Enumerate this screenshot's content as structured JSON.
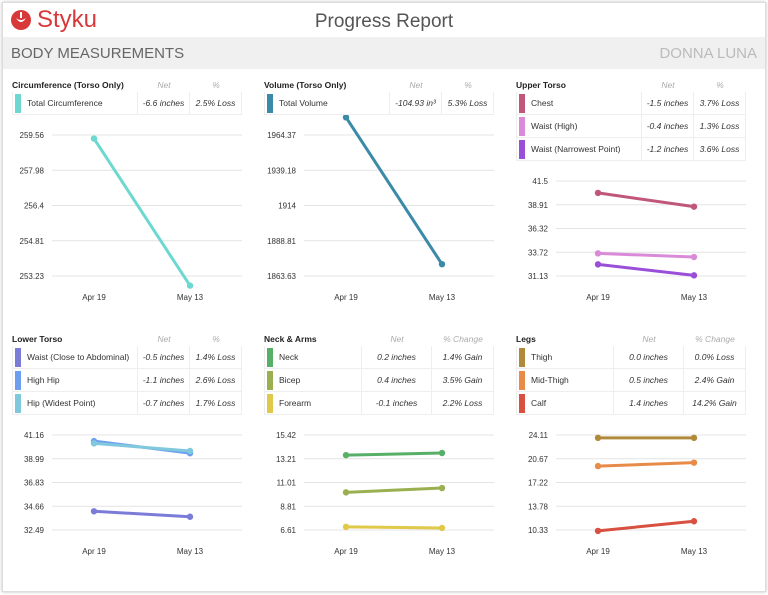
{
  "header": {
    "logo": "Styku",
    "title": "Progress Report",
    "section": "BODY MEASUREMENTS",
    "client": "DONNA LUNA"
  },
  "x_labels": [
    "Apr 19",
    "May 13"
  ],
  "panels": [
    {
      "title": "Circumference (Torso Only)",
      "net_header": "Net",
      "pct_header": "%",
      "ticks": [
        "259.56",
        "257.98",
        "256.4",
        "254.81",
        "253.23"
      ],
      "rows": [
        {
          "label": "Total Circumference",
          "net": "-6.6 inches",
          "pct": "2.5% Loss",
          "color": "#6dd8d0",
          "values": [
            259.4,
            252.8
          ]
        }
      ]
    },
    {
      "title": "Volume (Torso Only)",
      "net_header": "Net",
      "pct_header": "%",
      "ticks": [
        "1964.37",
        "1939.18",
        "1914",
        "1888.81",
        "1863.63"
      ],
      "rows": [
        {
          "label": "Total Volume",
          "net": "-104.93 in³",
          "pct": "5.3% Loss",
          "color": "#3a8aa8",
          "values": [
            1977.0,
            1872.07
          ]
        }
      ]
    },
    {
      "title": "Upper Torso",
      "net_header": "Net",
      "pct_header": "%",
      "ticks": [
        "41.5",
        "38.91",
        "36.32",
        "33.72",
        "31.13"
      ],
      "rows": [
        {
          "label": "Chest",
          "net": "-1.5 inches",
          "pct": "3.7% Loss",
          "color": "#c0567a",
          "values": [
            40.2,
            38.7
          ]
        },
        {
          "label": "Waist (High)",
          "net": "-0.4 inches",
          "pct": "1.3% Loss",
          "color": "#d98ad8",
          "values": [
            33.6,
            33.2
          ]
        },
        {
          "label": "Waist (Narrowest Point)",
          "net": "-1.2 inches",
          "pct": "3.6% Loss",
          "color": "#9a4fd8",
          "values": [
            32.4,
            31.2
          ]
        }
      ]
    },
    {
      "title": "Lower Torso",
      "net_header": "Net",
      "pct_header": "%",
      "ticks": [
        "41.16",
        "38.99",
        "36.83",
        "34.66",
        "32.49"
      ],
      "rows": [
        {
          "label": "Waist (Close to Abdominal)",
          "net": "-0.5 inches",
          "pct": "1.4% Loss",
          "color": "#7b7bd8",
          "values": [
            34.2,
            33.7
          ]
        },
        {
          "label": "High Hip",
          "net": "-1.1 inches",
          "pct": "2.6% Loss",
          "color": "#6e9ef0",
          "values": [
            40.6,
            39.5
          ]
        },
        {
          "label": "Hip (Widest Point)",
          "net": "-0.7 inches",
          "pct": "1.7% Loss",
          "color": "#80c8dc",
          "values": [
            40.4,
            39.7
          ]
        }
      ]
    },
    {
      "title": "Neck & Arms",
      "net_header": "Net",
      "pct_header": "% Change",
      "ticks": [
        "15.42",
        "13.21",
        "11.01",
        "8.81",
        "6.61"
      ],
      "rows": [
        {
          "label": "Neck",
          "net": "0.2 inches",
          "pct": "1.4% Gain",
          "color": "#58b068",
          "values": [
            13.55,
            13.75
          ]
        },
        {
          "label": "Bicep",
          "net": "0.4 inches",
          "pct": "3.5% Gain",
          "color": "#9ab050",
          "values": [
            10.1,
            10.5
          ]
        },
        {
          "label": "Forearm",
          "net": "-0.1 inches",
          "pct": "2.2% Loss",
          "color": "#e0c848",
          "values": [
            6.9,
            6.8
          ]
        }
      ]
    },
    {
      "title": "Legs",
      "net_header": "Net",
      "pct_header": "% Change",
      "ticks": [
        "24.11",
        "20.67",
        "17.22",
        "13.78",
        "10.33"
      ],
      "rows": [
        {
          "label": "Thigh",
          "net": "0.0 inches",
          "pct": "0.0% Loss",
          "color": "#b08a3a",
          "values": [
            23.7,
            23.7
          ]
        },
        {
          "label": "Mid-Thigh",
          "net": "0.5 inches",
          "pct": "2.4% Gain",
          "color": "#e88a48",
          "values": [
            19.6,
            20.1
          ]
        },
        {
          "label": "Calf",
          "net": "1.4 inches",
          "pct": "14.2% Gain",
          "color": "#d85040",
          "values": [
            10.2,
            11.6
          ]
        }
      ]
    }
  ]
}
